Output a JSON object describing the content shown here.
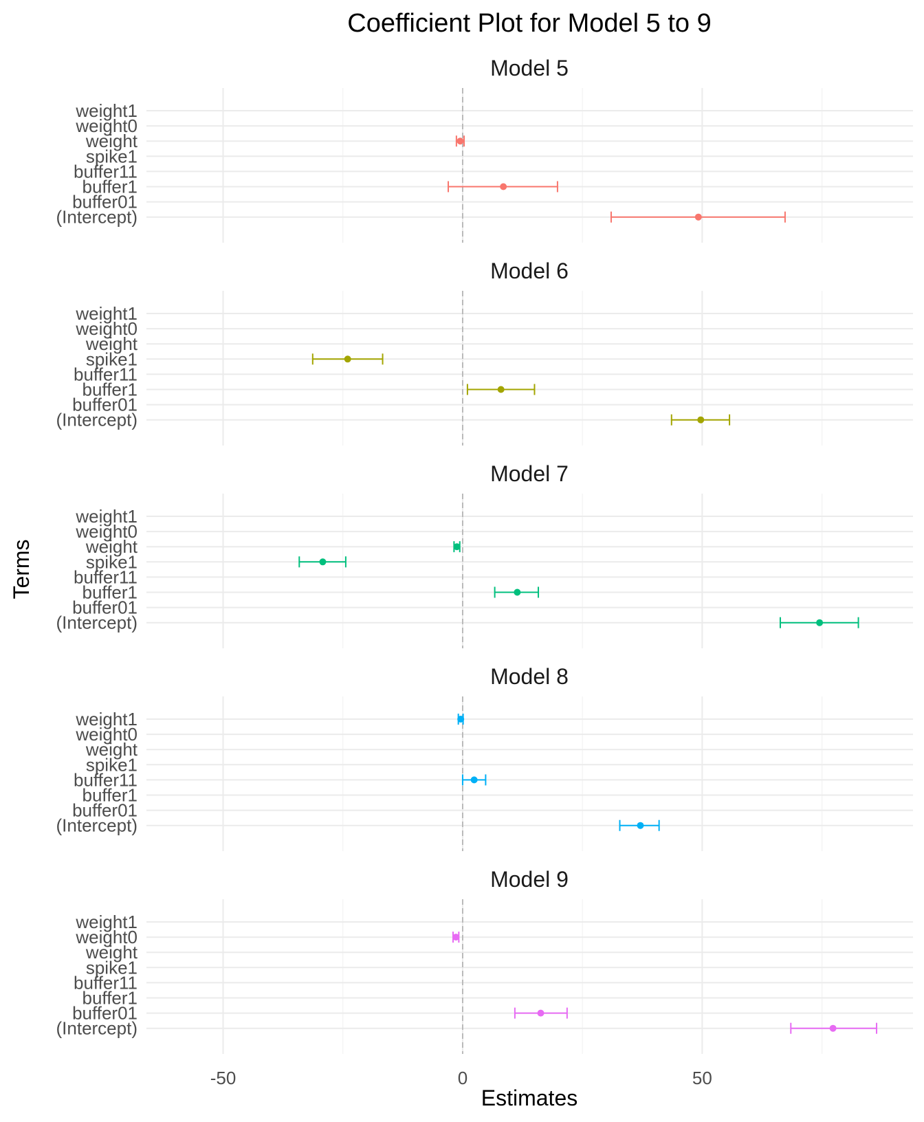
{
  "chart_data": {
    "type": "coefficient-plot",
    "title": "Coefficient Plot for Model 5 to 9",
    "xlabel": "Estimates",
    "ylabel": "Terms",
    "xlim": [
      -66,
      94
    ],
    "xticks": [
      -50,
      0,
      50
    ],
    "terms": [
      "weight1",
      "weight0",
      "weight",
      "spike1",
      "buffer11",
      "buffer1",
      "buffer01",
      "(Intercept)"
    ],
    "reference_line": 0,
    "grid": true,
    "panels": [
      {
        "label": "Model 5",
        "color": "#F8766D",
        "points": [
          {
            "term": "weight",
            "estimate": -0.5,
            "low": -1.3,
            "high": 0.3
          },
          {
            "term": "buffer1",
            "estimate": 8.5,
            "low": -3.0,
            "high": 19.8
          },
          {
            "term": "(Intercept)",
            "estimate": 49.2,
            "low": 31.0,
            "high": 67.3
          }
        ]
      },
      {
        "label": "Model 6",
        "color": "#A3A500",
        "points": [
          {
            "term": "spike1",
            "estimate": -24.0,
            "low": -31.3,
            "high": -16.7
          },
          {
            "term": "buffer1",
            "estimate": 8.0,
            "low": 1.0,
            "high": 15.0
          },
          {
            "term": "(Intercept)",
            "estimate": 49.7,
            "low": 43.6,
            "high": 55.7
          }
        ]
      },
      {
        "label": "Model 7",
        "color": "#00BF7D",
        "points": [
          {
            "term": "weight",
            "estimate": -1.2,
            "low": -1.8,
            "high": -0.6
          },
          {
            "term": "spike1",
            "estimate": -29.2,
            "low": -34.1,
            "high": -24.4
          },
          {
            "term": "buffer1",
            "estimate": 11.4,
            "low": 6.7,
            "high": 15.8
          },
          {
            "term": "(Intercept)",
            "estimate": 74.5,
            "low": 66.3,
            "high": 82.6
          }
        ]
      },
      {
        "label": "Model 8",
        "color": "#00B0F6",
        "points": [
          {
            "term": "weight1",
            "estimate": -0.4,
            "low": -0.9,
            "high": 0.1
          },
          {
            "term": "buffer11",
            "estimate": 2.4,
            "low": 0.0,
            "high": 4.8
          },
          {
            "term": "(Intercept)",
            "estimate": 37.1,
            "low": 32.8,
            "high": 41.0
          }
        ]
      },
      {
        "label": "Model 9",
        "color": "#E76BF3",
        "points": [
          {
            "term": "weight0",
            "estimate": -1.4,
            "low": -2.0,
            "high": -0.8
          },
          {
            "term": "buffer01",
            "estimate": 16.3,
            "low": 10.9,
            "high": 21.8
          },
          {
            "term": "(Intercept)",
            "estimate": 77.3,
            "low": 68.5,
            "high": 86.4
          }
        ]
      }
    ]
  }
}
